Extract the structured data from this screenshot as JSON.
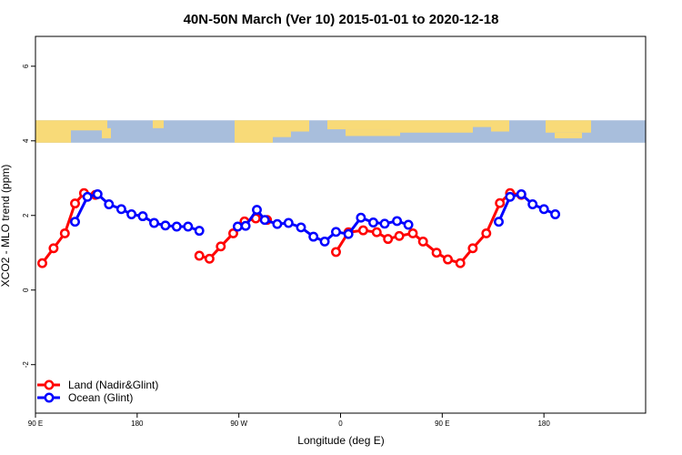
{
  "chart_data": {
    "type": "line",
    "title": "40N-50N March (Ver 10)   2015-01-01 to 2020-12-18",
    "xlabel": "Longitude (deg E)",
    "ylabel": "XCO2 - MLO trend (ppm)",
    "x_range": [
      90,
      630
    ],
    "ylim": [
      -3.3,
      6.8
    ],
    "x_ticks": [
      {
        "value": 90,
        "label": "90 E"
      },
      {
        "value": 180,
        "label": "180"
      },
      {
        "value": 270,
        "label": "90 W"
      },
      {
        "value": 360,
        "label": "0"
      },
      {
        "value": 450,
        "label": "90 E"
      },
      {
        "value": 540,
        "label": "180"
      }
    ],
    "y_ticks": [
      {
        "value": -2,
        "label": "-2"
      },
      {
        "value": 0,
        "label": "0"
      },
      {
        "value": 2,
        "label": "2"
      },
      {
        "value": 4,
        "label": "4"
      },
      {
        "value": 6,
        "label": "6"
      }
    ],
    "map_strip": {
      "y_bottom": 3.95,
      "y_top": 4.55,
      "land_color": "#f8da78",
      "ocean_color": "#a8bedc"
    },
    "legend_position": "bottom-left",
    "series": [
      {
        "name": "Land (Nadir&Glint)",
        "color": "#ff0000",
        "segments": [
          [
            [
              96,
              0.72
            ],
            [
              106,
              1.12
            ],
            [
              116,
              1.52
            ],
            [
              125,
              2.32
            ],
            [
              133,
              2.6
            ],
            [
              143,
              2.55
            ]
          ],
          [
            [
              235,
              0.92
            ],
            [
              244,
              0.84
            ],
            [
              254,
              1.17
            ],
            [
              265,
              1.52
            ],
            [
              275,
              1.84
            ],
            [
              285,
              1.92
            ],
            [
              295,
              1.88
            ]
          ],
          [
            [
              356,
              1.02
            ],
            [
              367,
              1.55
            ],
            [
              380,
              1.6
            ],
            [
              392,
              1.55
            ],
            [
              402,
              1.37
            ],
            [
              412,
              1.45
            ],
            [
              424,
              1.52
            ],
            [
              433,
              1.3
            ],
            [
              445,
              1.0
            ],
            [
              455,
              0.82
            ],
            [
              466,
              0.72
            ],
            [
              477,
              1.12
            ],
            [
              489,
              1.52
            ],
            [
              501,
              2.33
            ],
            [
              510,
              2.6
            ],
            [
              520,
              2.55
            ]
          ]
        ]
      },
      {
        "name": "Ocean (Glint)",
        "color": "#0000ff",
        "segments": [
          [
            [
              125,
              1.83
            ],
            [
              136,
              2.5
            ],
            [
              145,
              2.57
            ],
            [
              155,
              2.3
            ],
            [
              166,
              2.17
            ],
            [
              175,
              2.03
            ],
            [
              185,
              1.98
            ],
            [
              195,
              1.8
            ],
            [
              205,
              1.73
            ],
            [
              215,
              1.7
            ],
            [
              225,
              1.7
            ],
            [
              235,
              1.59
            ]
          ],
          [
            [
              269,
              1.7
            ],
            [
              276,
              1.72
            ],
            [
              286,
              2.15
            ],
            [
              293,
              1.88
            ],
            [
              304,
              1.77
            ],
            [
              314,
              1.8
            ],
            [
              325,
              1.68
            ],
            [
              336,
              1.43
            ],
            [
              346,
              1.3
            ],
            [
              356,
              1.56
            ],
            [
              367,
              1.5
            ],
            [
              378,
              1.94
            ],
            [
              389,
              1.81
            ],
            [
              399,
              1.78
            ],
            [
              410,
              1.85
            ],
            [
              420,
              1.75
            ]
          ],
          [
            [
              500,
              1.83
            ],
            [
              510,
              2.5
            ],
            [
              520,
              2.57
            ],
            [
              530,
              2.3
            ],
            [
              540,
              2.17
            ],
            [
              550,
              2.03
            ]
          ]
        ]
      }
    ]
  }
}
